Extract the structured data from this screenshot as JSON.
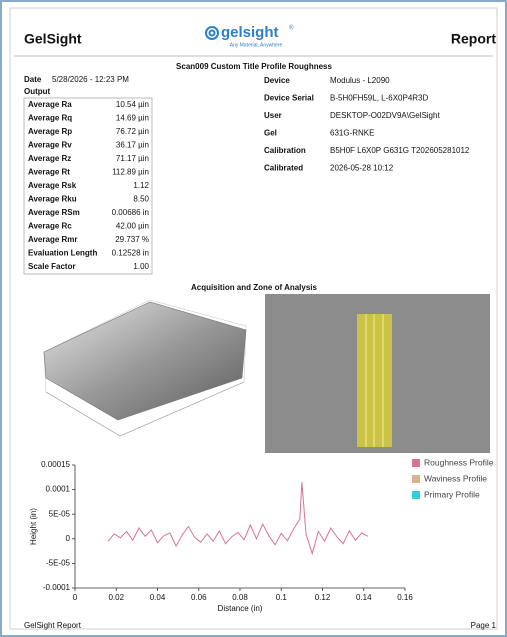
{
  "header": {
    "brand": "GelSight",
    "logo": "gelsight",
    "registered": "®",
    "tagline": "Any Material, Anywhere",
    "report": "Report"
  },
  "scan_title": "Scan009  Custom Title  Profile Roughness",
  "date": {
    "label": "Date",
    "value": "5/28/2026 - 12:23 PM"
  },
  "output": {
    "title": "Output",
    "rows": [
      [
        "Average Ra",
        "10.54 µin"
      ],
      [
        "Average Rq",
        "14.69 µin"
      ],
      [
        "Average Rp",
        "76.72 µin"
      ],
      [
        "Average Rv",
        "36.17 µin"
      ],
      [
        "Average Rz",
        "71.17 µin"
      ],
      [
        "Average Rt",
        "112.89 µin"
      ],
      [
        "Average Rsk",
        "1.12"
      ],
      [
        "Average Rku",
        "8.50"
      ],
      [
        "Average RSm",
        "0.00686 in"
      ],
      [
        "Average Rc",
        "42.00 µin"
      ],
      [
        "Average Rmr",
        "29.737 %"
      ],
      [
        "Evaluation Length",
        "0.12528 in"
      ],
      [
        "Scale Factor",
        "1.00"
      ]
    ]
  },
  "device_info": [
    [
      "Device",
      "Modulus - L2090"
    ],
    [
      "Device Serial",
      "B-5H0FH59L, L-6X0P4R3D"
    ],
    [
      "User",
      "DESKTOP-O02DV9A\\GelSight"
    ],
    [
      "Gel",
      "631G-RNKE"
    ],
    [
      "Calibration",
      "B5H0F L6X0P G631G T202605281012"
    ],
    [
      "Calibrated",
      "2026-05-28 10:12"
    ]
  ],
  "section_title": "Acquisition and Zone of Analysis",
  "chart_data": {
    "type": "line",
    "x_label": "Distance (in)",
    "y_label": "Height (in)",
    "x": [
      0.016,
      0.019,
      0.022,
      0.025,
      0.028,
      0.031,
      0.034,
      0.037,
      0.04,
      0.043,
      0.046,
      0.049,
      0.052,
      0.055,
      0.058,
      0.061,
      0.064,
      0.067,
      0.07,
      0.073,
      0.076,
      0.079,
      0.082,
      0.085,
      0.088,
      0.091,
      0.094,
      0.097,
      0.1,
      0.103,
      0.106,
      0.109,
      0.11,
      0.112,
      0.115,
      0.118,
      0.121,
      0.124,
      0.127,
      0.13,
      0.133,
      0.136,
      0.139,
      0.142
    ],
    "series": [
      {
        "name": "Roughness Profile",
        "color": "#d9738f",
        "values": [
          -5e-06,
          1e-05,
          2e-06,
          1.5e-05,
          -3e-06,
          2.2e-05,
          5e-06,
          1.8e-05,
          -8e-06,
          6e-06,
          1.2e-05,
          -1.5e-05,
          8e-06,
          2.5e-05,
          3e-06,
          -7e-06,
          1e-05,
          -5e-06,
          1.6e-05,
          -1e-05,
          4e-06,
          1.3e-05,
          -2e-06,
          2.8e-05,
          0,
          3e-05,
          6e-06,
          -1.2e-05,
          1.1e-05,
          -4e-06,
          2e-05,
          4e-05,
          0.000115,
          1e-05,
          -3e-05,
          1.5e-05,
          -5e-06,
          2.2e-05,
          4e-06,
          -1e-05,
          1.6e-05,
          -3e-06,
          1.2e-05,
          5e-06
        ]
      },
      {
        "name": "Waviness Profile",
        "color": "#d8b48a"
      },
      {
        "name": "Primary Profile",
        "color": "#2fd0d6"
      }
    ],
    "xlim": [
      0,
      0.16
    ],
    "xticks": [
      0,
      0.02,
      0.04,
      0.06,
      0.08,
      0.1,
      0.12,
      0.14,
      0.16
    ],
    "ylim": [
      -0.0001,
      0.00015
    ],
    "yticks": [
      -0.0001,
      {
        "value": -5e-05,
        "label": "-5E-05"
      },
      0,
      {
        "value": 5e-05,
        "label": "5E-05"
      },
      0.0001,
      0.00015
    ],
    "legend": "right"
  },
  "footer": {
    "left": "GelSight Report",
    "right": "Page 1"
  }
}
